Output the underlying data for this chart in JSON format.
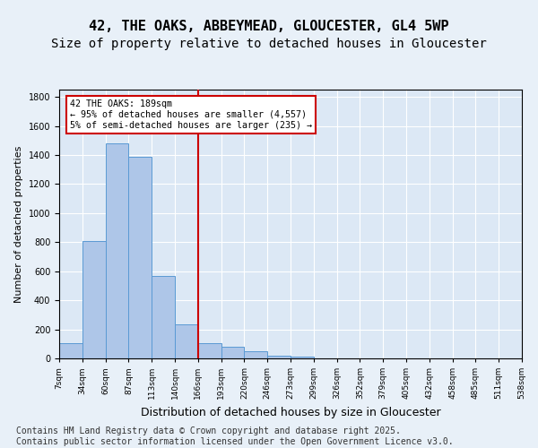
{
  "title1": "42, THE OAKS, ABBEYMEAD, GLOUCESTER, GL4 5WP",
  "title2": "Size of property relative to detached houses in Gloucester",
  "xlabel": "Distribution of detached houses by size in Gloucester",
  "ylabel": "Number of detached properties",
  "bin_labels": [
    "7sqm",
    "34sqm",
    "60sqm",
    "87sqm",
    "113sqm",
    "140sqm",
    "166sqm",
    "193sqm",
    "220sqm",
    "246sqm",
    "273sqm",
    "299sqm",
    "326sqm",
    "352sqm",
    "379sqm",
    "405sqm",
    "432sqm",
    "458sqm",
    "485sqm",
    "511sqm",
    "538sqm"
  ],
  "bar_values": [
    105,
    810,
    1480,
    1390,
    570,
    235,
    105,
    80,
    50,
    20,
    15,
    0,
    0,
    0,
    0,
    0,
    0,
    0,
    0,
    0
  ],
  "bar_color": "#aec6e8",
  "bar_edge_color": "#5a9ad4",
  "vline_x": 6.0,
  "vline_color": "#cc0000",
  "ylim": [
    0,
    1850
  ],
  "yticks": [
    0,
    200,
    400,
    600,
    800,
    1000,
    1200,
    1400,
    1600,
    1800
  ],
  "footnote": "Contains HM Land Registry data © Crown copyright and database right 2025.\nContains public sector information licensed under the Open Government Licence v3.0.",
  "bg_color": "#e8f0f8",
  "plot_bg_color": "#dce8f5",
  "grid_color": "#ffffff",
  "title_fontsize": 11,
  "subtitle_fontsize": 10,
  "footnote_fontsize": 7,
  "annotation_box_color": "#cc0000"
}
